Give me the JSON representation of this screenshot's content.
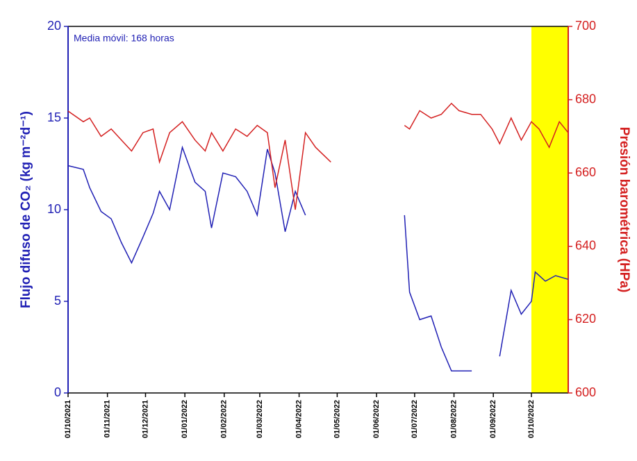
{
  "chart_data": {
    "type": "line",
    "annotation": "Media móvil: 168 horas",
    "y_label": "Flujo difuso de CO₂ (kg m⁻²d⁻¹)",
    "y2_label": "Presión barométrica (HPa)",
    "ylim": [
      0,
      20
    ],
    "yticks": [
      0,
      5,
      10,
      15,
      20
    ],
    "y2lim": [
      600,
      700
    ],
    "y2ticks": [
      600,
      620,
      640,
      660,
      680,
      700
    ],
    "xlim": [
      "2021-10-01",
      "2022-10-30"
    ],
    "xticks": [
      {
        "value": "2021-10-01",
        "label": "01/10/2021"
      },
      {
        "value": "2021-11-01",
        "label": "01/11/2021"
      },
      {
        "value": "2021-12-01",
        "label": "01/12/2021"
      },
      {
        "value": "2022-01-01",
        "label": "01/01/2022"
      },
      {
        "value": "2022-02-01",
        "label": "01/02/2022"
      },
      {
        "value": "2022-03-01",
        "label": "01/03/2022"
      },
      {
        "value": "2022-04-01",
        "label": "01/04/2022"
      },
      {
        "value": "2022-05-01",
        "label": "01/05/2022"
      },
      {
        "value": "2022-06-01",
        "label": "01/06/2022"
      },
      {
        "value": "2022-07-01",
        "label": "01/07/2022"
      },
      {
        "value": "2022-08-01",
        "label": "01/08/2022"
      },
      {
        "value": "2022-09-01",
        "label": "01/09/2022"
      },
      {
        "value": "2022-10-01",
        "label": "01/10/2022"
      }
    ],
    "highlight": {
      "range": [
        "2022-10-01",
        "2022-10-30"
      ],
      "color": "#ffff00"
    },
    "grid": false,
    "series": [
      {
        "color": "#1f1fb4",
        "axis": "y",
        "x": [
          "2021-10-01",
          "2021-10-13",
          "2021-10-18",
          "2021-10-27",
          "2021-11-04",
          "2021-11-12",
          "2021-11-20",
          "2021-11-29",
          "2021-12-07",
          "2021-12-12",
          "2021-12-20",
          "2021-12-30",
          "2022-01-09",
          "2022-01-17",
          "2022-01-22",
          "2022-01-31",
          "2022-02-10",
          "2022-02-19",
          "2022-02-27",
          "2022-03-07",
          "2022-03-13",
          "2022-03-21",
          "2022-03-29",
          "2022-04-06",
          "2022-05-15",
          "2022-06-23",
          "2022-06-27",
          "2022-07-05",
          "2022-07-14",
          "2022-07-22",
          "2022-07-30",
          "2022-08-15",
          "2022-08-25",
          "2022-09-06",
          "2022-09-15",
          "2022-09-23",
          "2022-10-01",
          "2022-10-04",
          "2022-10-12",
          "2022-10-20",
          "2022-10-30"
        ],
        "values": [
          12.4,
          12.2,
          11.2,
          9.9,
          9.5,
          8.2,
          7.1,
          8.5,
          9.8,
          11.0,
          10.0,
          13.4,
          11.5,
          11.0,
          9.0,
          12.0,
          11.8,
          11.0,
          9.7,
          13.3,
          12.0,
          8.8,
          11.0,
          9.7,
          null,
          9.7,
          5.5,
          4.0,
          4.2,
          2.5,
          1.2,
          1.2,
          null,
          2.0,
          5.6,
          4.3,
          5.0,
          6.6,
          6.1,
          6.4,
          6.2
        ]
      },
      {
        "color": "#d42020",
        "axis": "y2",
        "x": [
          "2021-10-01",
          "2021-10-13",
          "2021-10-18",
          "2021-10-27",
          "2021-11-04",
          "2021-11-12",
          "2021-11-20",
          "2021-11-29",
          "2021-12-07",
          "2021-12-12",
          "2021-12-20",
          "2021-12-30",
          "2022-01-09",
          "2022-01-17",
          "2022-01-22",
          "2022-01-31",
          "2022-02-10",
          "2022-02-19",
          "2022-02-27",
          "2022-03-07",
          "2022-03-13",
          "2022-03-21",
          "2022-03-29",
          "2022-04-06",
          "2022-04-14",
          "2022-04-26",
          "2022-05-25",
          "2022-06-23",
          "2022-06-27",
          "2022-07-05",
          "2022-07-14",
          "2022-07-22",
          "2022-07-30",
          "2022-08-05",
          "2022-08-15",
          "2022-08-22",
          "2022-08-31",
          "2022-09-06",
          "2022-09-15",
          "2022-09-23",
          "2022-10-01",
          "2022-10-07",
          "2022-10-15",
          "2022-10-23",
          "2022-10-30"
        ],
        "values": [
          676.9,
          674,
          675,
          670,
          672,
          669,
          666,
          671,
          672,
          663,
          671,
          674,
          669,
          666,
          671,
          666,
          672,
          670,
          673,
          671,
          656,
          669,
          650,
          671,
          667,
          663,
          null,
          673,
          672,
          677,
          675,
          676,
          679,
          677,
          676,
          676,
          672,
          668,
          675,
          669,
          674,
          672,
          667,
          674,
          671
        ]
      }
    ]
  }
}
